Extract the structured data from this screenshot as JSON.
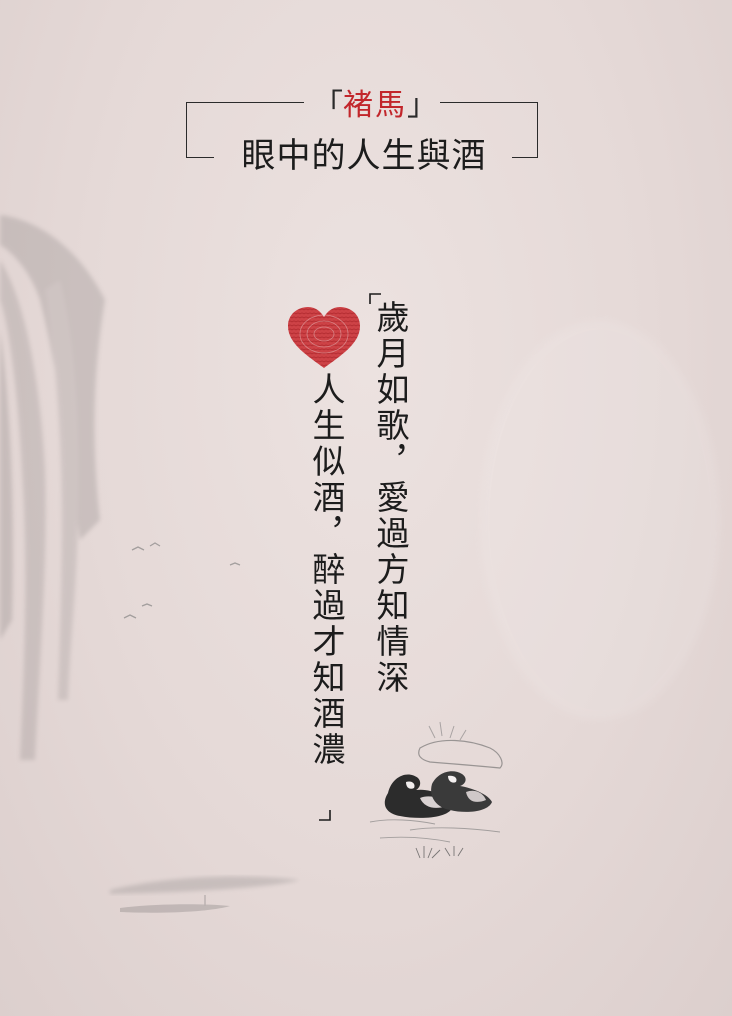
{
  "header": {
    "name_open": "「",
    "name": "褚馬",
    "name_close": "」",
    "subtitle": "眼中的人生與酒"
  },
  "verse": {
    "line1": "歲月如歌，愛過方知情深",
    "line2": "人生似酒，醉過才知酒濃"
  },
  "colors": {
    "accent": "#c2262b",
    "ink": "#1c1c1c",
    "paper": "#e8dedc"
  },
  "icons": [
    "fingerprint-heart-icon",
    "mandarin-ducks-illustration",
    "willow-tree-illustration",
    "boat-illustration",
    "birds-illustration"
  ]
}
